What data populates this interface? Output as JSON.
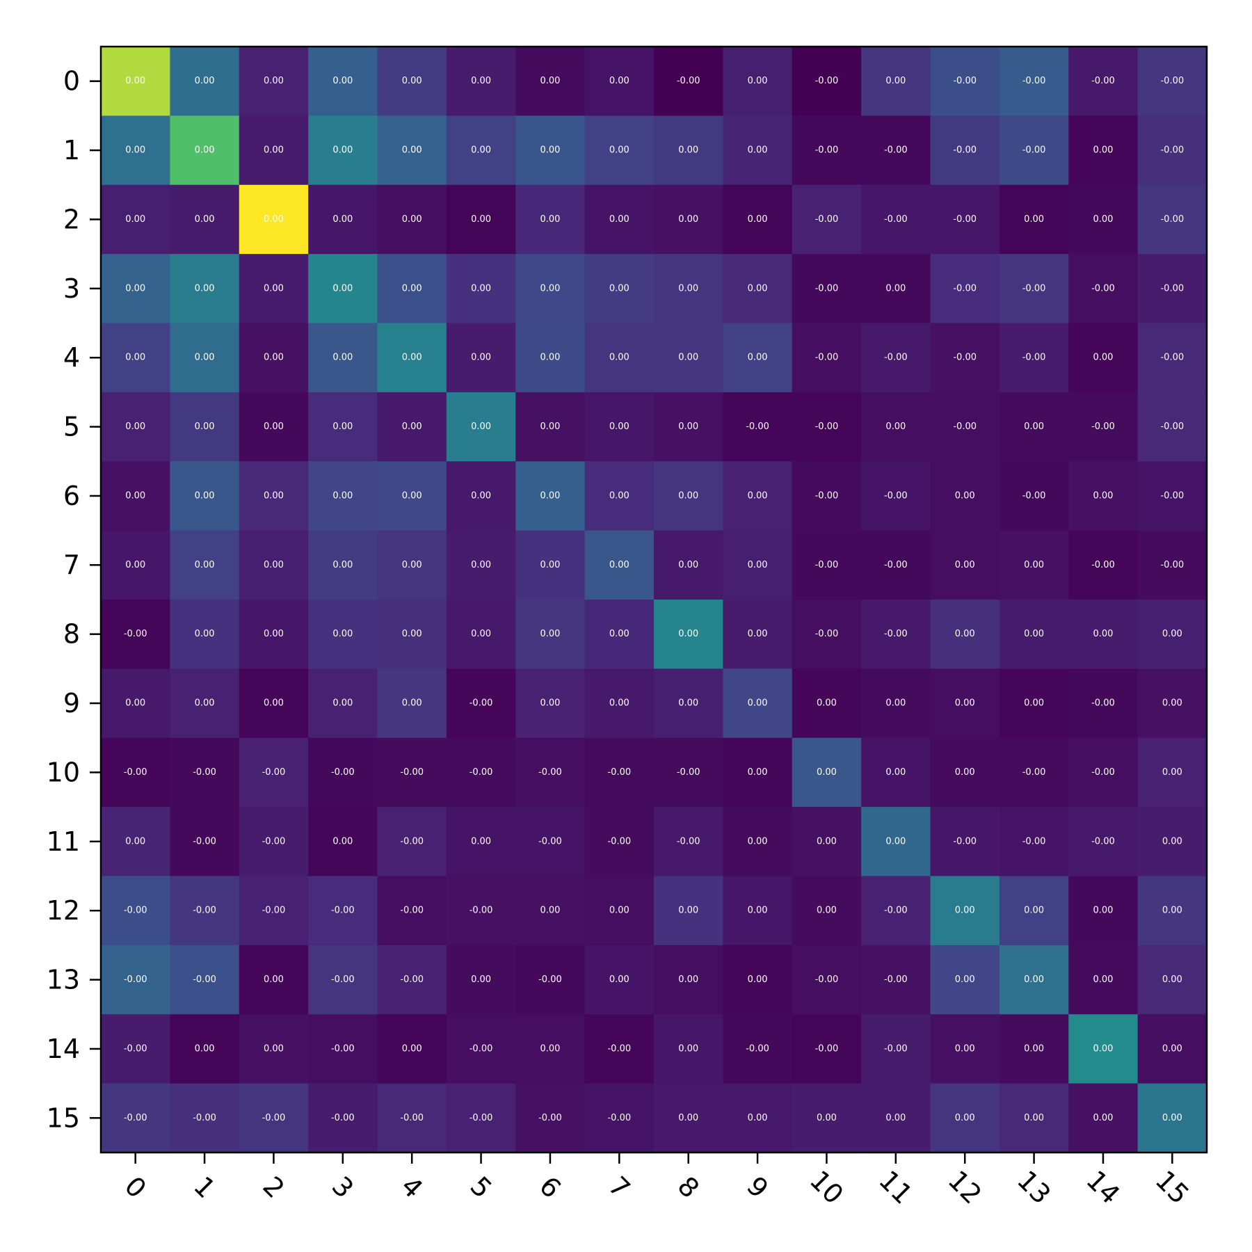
{
  "chart_data": {
    "type": "heatmap",
    "title": "",
    "xlabel": "",
    "ylabel": "",
    "x_tick_labels": [
      "0",
      "1",
      "2",
      "3",
      "4",
      "5",
      "6",
      "7",
      "8",
      "9",
      "10",
      "11",
      "12",
      "13",
      "14",
      "15"
    ],
    "y_tick_labels": [
      "0",
      "1",
      "2",
      "3",
      "4",
      "5",
      "6",
      "7",
      "8",
      "9",
      "10",
      "11",
      "12",
      "13",
      "14",
      "15"
    ],
    "x_tick_rotation_deg": 45,
    "colormap": "viridis",
    "color_range": [
      0,
      1
    ],
    "cell_labels": [
      [
        "0.00",
        "0.00",
        "0.00",
        "0.00",
        "0.00",
        "0.00",
        "0.00",
        "0.00",
        "-0.00",
        "0.00",
        "-0.00",
        "0.00",
        "-0.00",
        "-0.00",
        "-0.00",
        "-0.00"
      ],
      [
        "0.00",
        "0.00",
        "0.00",
        "0.00",
        "0.00",
        "0.00",
        "0.00",
        "0.00",
        "0.00",
        "0.00",
        "-0.00",
        "-0.00",
        "-0.00",
        "-0.00",
        "0.00",
        "-0.00"
      ],
      [
        "0.00",
        "0.00",
        "0.00",
        "0.00",
        "0.00",
        "0.00",
        "0.00",
        "0.00",
        "0.00",
        "0.00",
        "-0.00",
        "-0.00",
        "-0.00",
        "0.00",
        "0.00",
        "-0.00"
      ],
      [
        "0.00",
        "0.00",
        "0.00",
        "0.00",
        "0.00",
        "0.00",
        "0.00",
        "0.00",
        "0.00",
        "0.00",
        "-0.00",
        "0.00",
        "-0.00",
        "-0.00",
        "-0.00",
        "-0.00"
      ],
      [
        "0.00",
        "0.00",
        "0.00",
        "0.00",
        "0.00",
        "0.00",
        "0.00",
        "0.00",
        "0.00",
        "0.00",
        "-0.00",
        "-0.00",
        "-0.00",
        "-0.00",
        "0.00",
        "-0.00"
      ],
      [
        "0.00",
        "0.00",
        "0.00",
        "0.00",
        "0.00",
        "0.00",
        "0.00",
        "0.00",
        "0.00",
        "-0.00",
        "-0.00",
        "0.00",
        "-0.00",
        "0.00",
        "-0.00",
        "-0.00"
      ],
      [
        "0.00",
        "0.00",
        "0.00",
        "0.00",
        "0.00",
        "0.00",
        "0.00",
        "0.00",
        "0.00",
        "0.00",
        "-0.00",
        "-0.00",
        "0.00",
        "-0.00",
        "0.00",
        "-0.00"
      ],
      [
        "0.00",
        "0.00",
        "0.00",
        "0.00",
        "0.00",
        "0.00",
        "0.00",
        "0.00",
        "0.00",
        "0.00",
        "-0.00",
        "-0.00",
        "0.00",
        "0.00",
        "-0.00",
        "-0.00"
      ],
      [
        "-0.00",
        "0.00",
        "0.00",
        "0.00",
        "0.00",
        "0.00",
        "0.00",
        "0.00",
        "0.00",
        "0.00",
        "-0.00",
        "-0.00",
        "0.00",
        "0.00",
        "0.00",
        "0.00"
      ],
      [
        "0.00",
        "0.00",
        "0.00",
        "0.00",
        "0.00",
        "-0.00",
        "0.00",
        "0.00",
        "0.00",
        "0.00",
        "0.00",
        "0.00",
        "0.00",
        "0.00",
        "-0.00",
        "0.00"
      ],
      [
        "-0.00",
        "-0.00",
        "-0.00",
        "-0.00",
        "-0.00",
        "-0.00",
        "-0.00",
        "-0.00",
        "-0.00",
        "0.00",
        "0.00",
        "0.00",
        "0.00",
        "-0.00",
        "-0.00",
        "0.00"
      ],
      [
        "0.00",
        "-0.00",
        "-0.00",
        "0.00",
        "-0.00",
        "0.00",
        "-0.00",
        "-0.00",
        "-0.00",
        "0.00",
        "0.00",
        "0.00",
        "-0.00",
        "-0.00",
        "-0.00",
        "0.00"
      ],
      [
        "-0.00",
        "-0.00",
        "-0.00",
        "-0.00",
        "-0.00",
        "-0.00",
        "0.00",
        "0.00",
        "0.00",
        "0.00",
        "0.00",
        "-0.00",
        "0.00",
        "0.00",
        "0.00",
        "0.00"
      ],
      [
        "-0.00",
        "-0.00",
        "0.00",
        "-0.00",
        "-0.00",
        "0.00",
        "-0.00",
        "0.00",
        "0.00",
        "0.00",
        "-0.00",
        "-0.00",
        "0.00",
        "0.00",
        "0.00",
        "0.00"
      ],
      [
        "-0.00",
        "0.00",
        "0.00",
        "-0.00",
        "0.00",
        "-0.00",
        "0.00",
        "-0.00",
        "0.00",
        "-0.00",
        "-0.00",
        "-0.00",
        "0.00",
        "0.00",
        "0.00",
        "0.00"
      ],
      [
        "-0.00",
        "-0.00",
        "-0.00",
        "-0.00",
        "-0.00",
        "-0.00",
        "-0.00",
        "-0.00",
        "0.00",
        "0.00",
        "0.00",
        "0.00",
        "0.00",
        "0.00",
        "0.00",
        "0.00"
      ]
    ],
    "color_intensity": [
      [
        0.93,
        0.45,
        0.12,
        0.38,
        0.22,
        0.1,
        0.04,
        0.07,
        0.0,
        0.11,
        0.0,
        0.19,
        0.3,
        0.36,
        0.09,
        0.2
      ],
      [
        0.46,
        0.82,
        0.1,
        0.53,
        0.39,
        0.24,
        0.33,
        0.24,
        0.21,
        0.13,
        0.03,
        0.03,
        0.21,
        0.28,
        0.02,
        0.17
      ],
      [
        0.11,
        0.1,
        1.0,
        0.08,
        0.05,
        0.01,
        0.14,
        0.07,
        0.06,
        0.01,
        0.12,
        0.08,
        0.08,
        0.01,
        0.03,
        0.2
      ],
      [
        0.4,
        0.52,
        0.1,
        0.57,
        0.31,
        0.18,
        0.27,
        0.22,
        0.19,
        0.15,
        0.03,
        0.03,
        0.16,
        0.19,
        0.05,
        0.1
      ],
      [
        0.24,
        0.44,
        0.06,
        0.34,
        0.54,
        0.1,
        0.29,
        0.19,
        0.2,
        0.24,
        0.05,
        0.09,
        0.06,
        0.1,
        0.02,
        0.15
      ],
      [
        0.12,
        0.21,
        0.03,
        0.16,
        0.09,
        0.53,
        0.06,
        0.08,
        0.06,
        0.02,
        0.02,
        0.05,
        0.05,
        0.04,
        0.04,
        0.15
      ],
      [
        0.06,
        0.34,
        0.15,
        0.26,
        0.27,
        0.09,
        0.38,
        0.16,
        0.19,
        0.12,
        0.04,
        0.07,
        0.05,
        0.03,
        0.06,
        0.07
      ],
      [
        0.08,
        0.24,
        0.11,
        0.22,
        0.19,
        0.1,
        0.18,
        0.34,
        0.09,
        0.11,
        0.03,
        0.03,
        0.05,
        0.06,
        0.02,
        0.04
      ],
      [
        0.01,
        0.18,
        0.08,
        0.18,
        0.17,
        0.09,
        0.2,
        0.14,
        0.56,
        0.1,
        0.05,
        0.09,
        0.17,
        0.1,
        0.1,
        0.11
      ],
      [
        0.09,
        0.12,
        0.02,
        0.12,
        0.2,
        0.02,
        0.12,
        0.09,
        0.11,
        0.26,
        0.02,
        0.04,
        0.05,
        0.02,
        0.03,
        0.06
      ],
      [
        0.02,
        0.03,
        0.12,
        0.03,
        0.04,
        0.04,
        0.05,
        0.04,
        0.04,
        0.02,
        0.34,
        0.07,
        0.04,
        0.04,
        0.05,
        0.12
      ],
      [
        0.13,
        0.03,
        0.1,
        0.02,
        0.12,
        0.07,
        0.07,
        0.04,
        0.09,
        0.04,
        0.06,
        0.42,
        0.08,
        0.07,
        0.09,
        0.1
      ],
      [
        0.3,
        0.2,
        0.12,
        0.16,
        0.05,
        0.06,
        0.06,
        0.05,
        0.18,
        0.08,
        0.04,
        0.12,
        0.52,
        0.24,
        0.03,
        0.2
      ],
      [
        0.4,
        0.31,
        0.02,
        0.19,
        0.12,
        0.04,
        0.03,
        0.07,
        0.05,
        0.02,
        0.05,
        0.06,
        0.26,
        0.46,
        0.04,
        0.15
      ],
      [
        0.1,
        0.01,
        0.06,
        0.05,
        0.02,
        0.05,
        0.05,
        0.02,
        0.08,
        0.03,
        0.02,
        0.1,
        0.06,
        0.04,
        0.6,
        0.05
      ],
      [
        0.2,
        0.17,
        0.19,
        0.1,
        0.15,
        0.12,
        0.06,
        0.07,
        0.09,
        0.09,
        0.1,
        0.1,
        0.19,
        0.15,
        0.06,
        0.49
      ]
    ]
  }
}
